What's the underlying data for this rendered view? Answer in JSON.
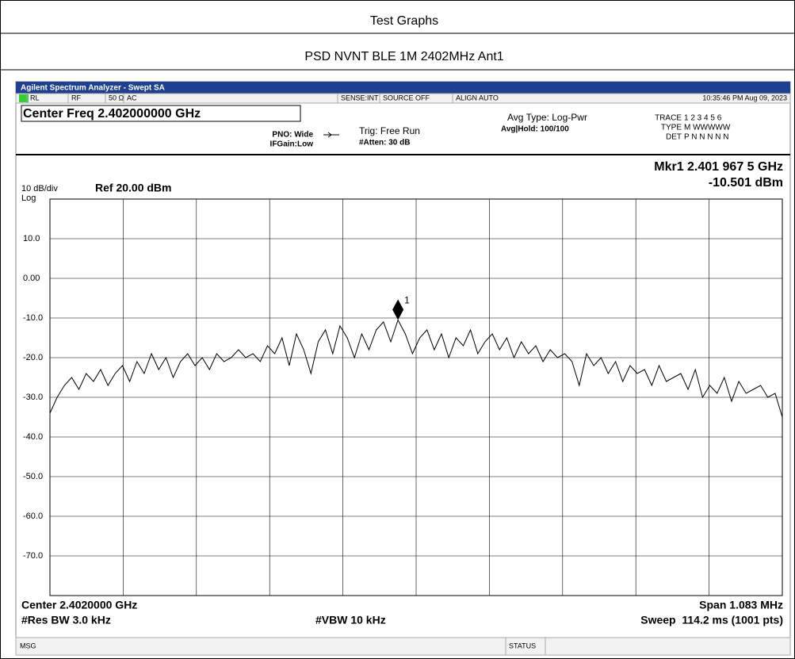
{
  "report": {
    "title": "Test Graphs",
    "subtitle": "PSD NVNT BLE 1M 2402MHz Ant1"
  },
  "analyzer": {
    "window_title": "Agilent Spectrum Analyzer - Swept SA",
    "status": [
      "RL",
      "RF",
      "50 Ω",
      "AC",
      "SENSE:INT",
      "SOURCE OFF",
      "ALIGN AUTO"
    ],
    "timestamp": "10:35:46 PM Aug 09, 2023",
    "center_freq": "Center Freq 2.402000000 GHz",
    "pno": "PNO: Wide",
    "ifgain": "IFGain:Low",
    "trig": "Trig: Free Run",
    "atten": "#Atten: 30 dB",
    "avg_type": "Avg Type: Log-Pwr",
    "avg_hold": "Avg|Hold: 100/100",
    "trace_label": "TRACE",
    "trace_nums": "1 2 3 4 5 6",
    "type_label": "TYPE",
    "type_val": "M WWWWW",
    "det_label": "DET",
    "det_val": "P N N N N N",
    "msg": "MSG",
    "status_bar": "STATUS"
  },
  "chart_data": {
    "type": "line",
    "marker_freq": "Mkr1 2.401 967 5 GHz",
    "marker_level": "-10.501 dBm",
    "scale": "10 dB/div",
    "ref": "Ref 20.00 dBm",
    "scale_type": "Log",
    "marker_label": "1",
    "center": "Center 2.4020000 GHz",
    "span": "Span 1.083 MHz",
    "rbw": "#Res BW 3.0 kHz",
    "vbw": "#VBW 10 kHz",
    "sweep": "Sweep  114.2 ms (1001 pts)",
    "ylim": [
      -80,
      20
    ],
    "yticks": [
      {
        "value": 10,
        "label": "10.0"
      },
      {
        "value": 0,
        "label": "0.00"
      },
      {
        "value": -10,
        "label": "-10.0"
      },
      {
        "value": -20,
        "label": "-20.0"
      },
      {
        "value": -30,
        "label": "-30.0"
      },
      {
        "value": -40,
        "label": "-40.0"
      },
      {
        "value": -50,
        "label": "-50.0"
      },
      {
        "value": -60,
        "label": "-60.0"
      },
      {
        "value": -70,
        "label": "-70.0"
      }
    ],
    "grid": true,
    "color": "#000000",
    "values": [
      -34,
      -30,
      -27,
      -25,
      -28,
      -24,
      -26,
      -23,
      -27,
      -24,
      -22,
      -26,
      -21,
      -24,
      -19,
      -23,
      -20,
      -25,
      -21,
      -19,
      -22,
      -20,
      -23,
      -19,
      -21,
      -20,
      -18,
      -20,
      -19,
      -21,
      -17,
      -19,
      -15,
      -22,
      -14,
      -18,
      -24,
      -16,
      -13,
      -19,
      -12,
      -15,
      -20,
      -14,
      -18,
      -13,
      -11,
      -16,
      -10.5,
      -14,
      -19,
      -15,
      -13,
      -18,
      -14,
      -20,
      -15,
      -17,
      -13,
      -19,
      -16,
      -14,
      -18,
      -15,
      -20,
      -16,
      -19,
      -17,
      -21,
      -18,
      -20,
      -19,
      -21,
      -27,
      -19,
      -22,
      -20,
      -24,
      -21,
      -26,
      -22,
      -24,
      -23,
      -27,
      -22,
      -26,
      -25,
      -24,
      -28,
      -23,
      -30,
      -27,
      -29,
      -25,
      -31,
      -26,
      -29,
      -28,
      -27,
      -30,
      -29,
      -35
    ]
  }
}
